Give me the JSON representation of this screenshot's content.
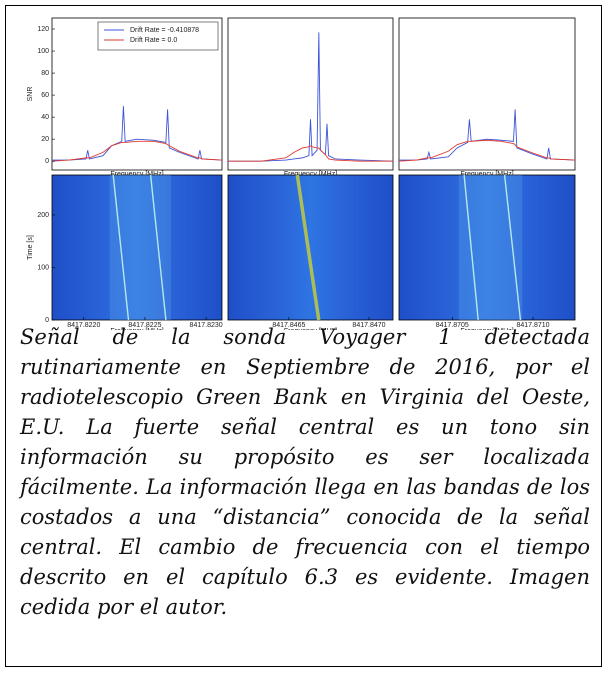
{
  "chart_data": [
    {
      "type": "line",
      "y_label": "SNR",
      "x_label": "Frequency [MHz]",
      "legend": "upper right",
      "xlim": [
        8417.82174,
        8417.82313
      ],
      "ylim": [
        -8,
        130
      ],
      "yticks": [
        0,
        20,
        40,
        60,
        80,
        100,
        120
      ],
      "x": [
        8417.82174,
        8417.821879,
        8417.822018,
        8417.822032,
        8417.822046,
        8417.822157,
        8417.822227,
        8417.82231,
        8417.822324,
        8417.822338,
        8417.822435,
        8417.822574,
        8417.822671,
        8417.822685,
        8417.822699,
        8417.822783,
        8417.822935,
        8417.822949,
        8417.822963,
        8417.82313
      ],
      "series": [
        {
          "name": "Drift Rate = -0.410878",
          "color": "#3d55d8",
          "values": [
            1,
            1,
            2,
            10,
            2,
            5,
            14,
            18,
            50,
            18,
            20,
            19,
            17,
            47,
            12,
            8,
            2,
            10,
            2,
            1
          ]
        },
        {
          "name": "Drift Rate = 0.0",
          "color": "#e23a2e",
          "values": [
            0,
            1,
            3,
            3,
            3,
            8,
            14,
            17,
            17,
            17,
            18,
            18,
            16,
            15,
            14,
            9,
            3,
            3,
            2,
            1
          ]
        }
      ]
    },
    {
      "type": "line",
      "x_label": "Frequency [MHz]",
      "xlim": [
        8417.84612,
        8417.84715
      ],
      "ylim": [
        -8,
        130
      ],
      "x": [
        8417.84612,
        8417.846326,
        8417.846481,
        8417.846532,
        8417.846584,
        8417.846625,
        8417.846635,
        8417.846645,
        8417.846676,
        8417.846687,
        8417.846697,
        8417.846728,
        8417.846738,
        8417.846748,
        8417.84679,
        8417.846944,
        8417.84715
      ],
      "series": [
        {
          "color": "#3d55d8",
          "values": [
            0,
            0,
            1,
            2,
            3,
            5,
            38,
            5,
            10,
            117,
            10,
            6,
            34,
            5,
            2,
            1,
            0
          ]
        },
        {
          "color": "#e23a2e",
          "values": [
            0,
            0,
            3,
            8,
            12,
            13,
            14,
            13,
            12,
            12,
            10,
            6,
            4,
            2,
            1,
            0,
            0
          ]
        }
      ]
    },
    {
      "type": "line",
      "x_label": "Frequency [MHz]",
      "xlim": [
        8417.87017,
        8417.87126
      ],
      "ylim": [
        -8,
        130
      ],
      "x": [
        8417.87017,
        8417.870279,
        8417.870344,
        8417.870355,
        8417.870366,
        8417.870475,
        8417.87053,
        8417.870595,
        8417.870606,
        8417.870617,
        8417.870715,
        8417.870802,
        8417.870879,
        8417.870889,
        8417.8709,
        8417.870988,
        8417.871086,
        8417.871097,
        8417.871108,
        8417.87126
      ],
      "series": [
        {
          "color": "#3d55d8",
          "values": [
            1,
            1,
            2,
            8,
            2,
            4,
            12,
            17,
            38,
            18,
            20,
            19,
            18,
            47,
            12,
            7,
            2,
            12,
            2,
            1
          ]
        },
        {
          "color": "#e23a2e",
          "values": [
            0,
            1,
            3,
            3,
            3,
            9,
            15,
            18,
            18,
            18,
            19,
            18,
            16,
            15,
            13,
            8,
            3,
            3,
            2,
            1
          ]
        }
      ]
    },
    {
      "type": "heatmap",
      "y_label": "Time [s]",
      "x_label": "Frequency [MHz]",
      "xlim": [
        8417.82174,
        8417.82313
      ],
      "ylim": [
        0,
        276
      ],
      "yticks": [
        0,
        100,
        200
      ],
      "xticks": [
        {
          "value": 8417.822,
          "label": "8417.8220"
        },
        {
          "value": 8417.8225,
          "label": "8417.8225"
        },
        {
          "value": 8417.823,
          "label": "8417.8230"
        }
      ]
    },
    {
      "type": "heatmap",
      "x_label": "Frequency [MHz]",
      "xlim": [
        8417.84612,
        8417.84715
      ],
      "ylim": [
        0,
        276
      ],
      "xticks": [
        {
          "value": 8417.8465,
          "label": "8417.8465"
        },
        {
          "value": 8417.847,
          "label": "8417.8470"
        }
      ]
    },
    {
      "type": "heatmap",
      "x_label": "Frequency [MHz]",
      "xlim": [
        8417.87017,
        8417.87126
      ],
      "ylim": [
        0,
        276
      ],
      "xticks": [
        {
          "value": 8417.8705,
          "label": "8417.8705"
        },
        {
          "value": 8417.871,
          "label": "8417.8710"
        }
      ]
    }
  ],
  "caption": "Señal de la sonda Voyager 1 detectada rutinariamente en Septiembre de 2016, por el radiotelescopio Green Bank en Virginia del Oeste, E.U.  La fuerte señal central es un tono sin información su propósito es ser localizada fácilmente. La información llega en las bandas de los costados a una “distancia” conocida de la señal central. El cambio de frecuencia con el tiempo descrito en el capítulo 6.3 es evidente. Imagen cedida por el autor."
}
